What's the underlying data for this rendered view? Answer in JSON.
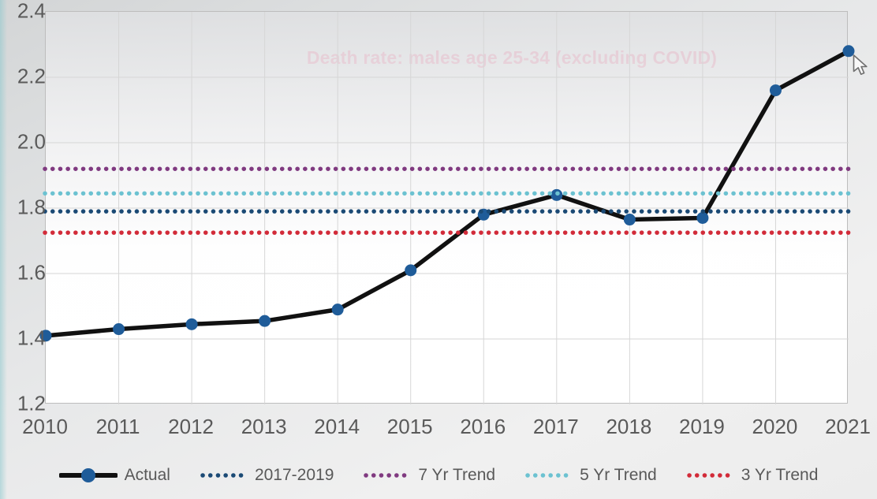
{
  "chart_data": {
    "type": "line",
    "title": "Death rate: males age 25-34 (excluding COVID)",
    "title_color": "#e8386d",
    "xlabel": "",
    "ylabel": "",
    "categories": [
      "2010",
      "2011",
      "2012",
      "2013",
      "2014",
      "2015",
      "2016",
      "2017",
      "2018",
      "2019",
      "2020",
      "2021"
    ],
    "series": [
      {
        "name": "Actual",
        "style": "solid-with-markers",
        "color": "#111111",
        "marker_color": "#1f5c99",
        "values": [
          1.41,
          1.43,
          1.445,
          1.455,
          1.49,
          1.61,
          1.78,
          1.84,
          1.765,
          1.77,
          2.16,
          2.28
        ]
      },
      {
        "name": "2017-2019",
        "style": "dotted-constant",
        "color": "#1b4a75",
        "value": 1.79
      },
      {
        "name": "7 Yr Trend",
        "style": "dotted-constant",
        "color": "#803a80",
        "value": 1.92
      },
      {
        "name": "5 Yr Trend",
        "style": "dotted-constant",
        "color": "#6cc2d1",
        "value": 1.845
      },
      {
        "name": "3 Yr Trend",
        "style": "dotted-constant",
        "color": "#d22b39",
        "value": 1.725
      }
    ],
    "legend_order": [
      "Actual",
      "2017-2019",
      "7 Yr Trend",
      "5 Yr Trend",
      "3 Yr Trend"
    ],
    "ylim": [
      1.2,
      2.4
    ],
    "yticks": [
      {
        "label": "2.4",
        "value": 2.4
      },
      {
        "label": "2.2",
        "value": 2.2
      },
      {
        "label": "2.0",
        "value": 2.0
      },
      {
        "label": "1.8",
        "value": 1.8
      },
      {
        "label": "1.6",
        "value": 1.6
      },
      {
        "label": "1.4",
        "value": 1.4
      },
      {
        "label": "1.2",
        "value": 1.2
      }
    ],
    "grid": true,
    "grid_color": "#d6d6d6",
    "legend_position": "bottom",
    "axis_text_color": "#5a5a5a"
  },
  "cursor": {
    "icon": "arrow-pointer",
    "near": "2021 data point"
  }
}
